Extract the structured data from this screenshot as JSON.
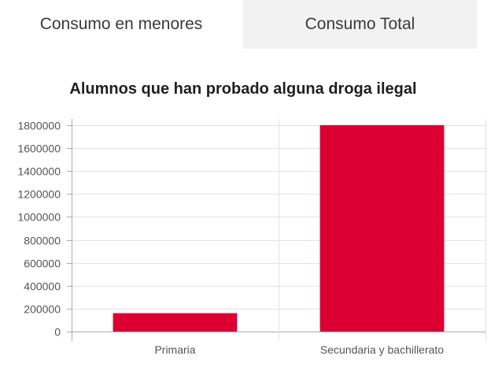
{
  "tabs": [
    {
      "label": "Consumo en menores",
      "active": true
    },
    {
      "label": "Consumo Total",
      "active": false
    }
  ],
  "colors": {
    "bar": "#dc0032",
    "tab_inactive_bg": "#f2f2f2",
    "grid": "#e3e3e3",
    "axis": "#aaaaaa",
    "text": "#555555"
  },
  "chart_data": {
    "type": "bar",
    "title": "Alumnos que han probado alguna droga ilegal",
    "categories": [
      "Primaria",
      "Secundaria y bachillerato"
    ],
    "values": [
      160000,
      1800000
    ],
    "xlabel": "",
    "ylabel": "",
    "ylim": [
      0,
      1800000
    ],
    "yticks": [
      0,
      200000,
      400000,
      600000,
      800000,
      1000000,
      1200000,
      1400000,
      1600000,
      1800000
    ],
    "grid": true,
    "legend": "none"
  }
}
